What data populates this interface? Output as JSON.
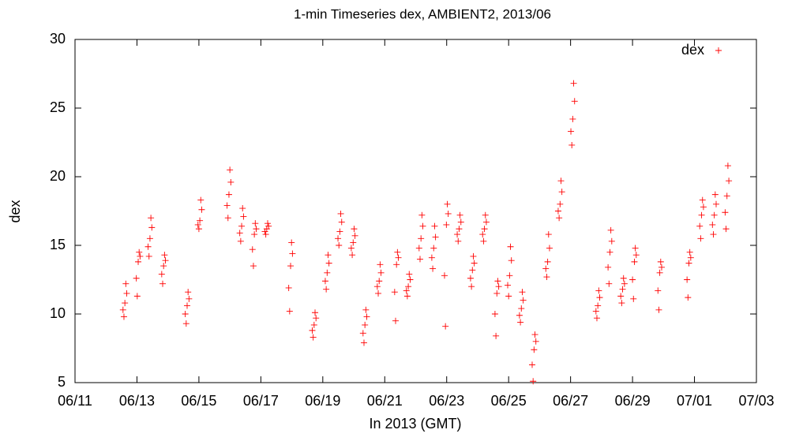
{
  "chart_data": {
    "type": "scatter",
    "title": "1-min Timeseries dex, AMBIENT2, 2013/06",
    "x_label": "In 2013 (GMT)",
    "y_label": "dex",
    "xlim": [
      11,
      33
    ],
    "xticks": [
      {
        "value": 11,
        "label": "06/11"
      },
      {
        "value": 13,
        "label": "06/13"
      },
      {
        "value": 15,
        "label": "06/15"
      },
      {
        "value": 17,
        "label": "06/17"
      },
      {
        "value": 19,
        "label": "06/19"
      },
      {
        "value": 21,
        "label": "06/21"
      },
      {
        "value": 23,
        "label": "06/23"
      },
      {
        "value": 25,
        "label": "06/25"
      },
      {
        "value": 27,
        "label": "06/27"
      },
      {
        "value": 29,
        "label": "06/29"
      },
      {
        "value": 31,
        "label": "07/01"
      },
      {
        "value": 33,
        "label": "07/03"
      }
    ],
    "ylim": [
      5,
      30
    ],
    "yticks": [
      5,
      10,
      15,
      20,
      25,
      30
    ],
    "legend": "top-right",
    "series": [
      {
        "name": "dex",
        "color": "#ff0000",
        "x": [
          12.55,
          12.58,
          12.61,
          12.64,
          12.67,
          12.98,
          13.01,
          13.04,
          13.07,
          13.1,
          13.36,
          13.39,
          13.42,
          13.45,
          13.48,
          13.8,
          13.83,
          13.86,
          13.89,
          13.92,
          14.56,
          14.59,
          14.62,
          14.65,
          14.68,
          14.97,
          15,
          15.03,
          15.06,
          15.09,
          15.91,
          15.94,
          15.97,
          16,
          16.03,
          16.32,
          16.35,
          16.38,
          16.41,
          16.44,
          16.73,
          16.76,
          16.79,
          16.82,
          16.85,
          17.13,
          17.16,
          17.19,
          17.22,
          17.25,
          17.9,
          17.93,
          17.96,
          17.99,
          18.02,
          18.66,
          18.69,
          18.72,
          18.75,
          18.78,
          19.08,
          19.11,
          19.14,
          19.17,
          19.2,
          19.49,
          19.52,
          19.55,
          19.58,
          19.61,
          19.92,
          19.95,
          19.98,
          20.01,
          20.04,
          20.3,
          20.33,
          20.36,
          20.39,
          20.42,
          20.76,
          20.79,
          20.82,
          20.85,
          20.88,
          21.32,
          21.35,
          21.38,
          21.41,
          21.44,
          21.7,
          21.73,
          21.76,
          21.79,
          21.82,
          22.11,
          22.14,
          22.17,
          22.2,
          22.23,
          22.52,
          22.55,
          22.58,
          22.61,
          22.64,
          22.93,
          22.96,
          22.99,
          23.02,
          23.05,
          23.34,
          23.37,
          23.4,
          23.43,
          23.46,
          23.77,
          23.8,
          23.83,
          23.86,
          23.89,
          24.16,
          24.19,
          24.22,
          24.25,
          24.28,
          24.56,
          24.59,
          24.62,
          24.65,
          24.68,
          24.97,
          25,
          25.03,
          25.06,
          25.09,
          25.35,
          25.38,
          25.41,
          25.44,
          25.47,
          25.76,
          25.79,
          25.82,
          25.85,
          25.88,
          26.2,
          26.23,
          26.26,
          26.29,
          26.32,
          26.6,
          26.63,
          26.66,
          26.69,
          26.72,
          27.01,
          27.04,
          27.07,
          27.1,
          27.13,
          27.82,
          27.85,
          27.88,
          27.91,
          27.94,
          28.21,
          28.24,
          28.27,
          28.3,
          28.33,
          28.62,
          28.65,
          28.68,
          28.71,
          28.74,
          29,
          29.03,
          29.06,
          29.09,
          29.12,
          29.82,
          29.85,
          29.88,
          29.91,
          29.94,
          30.76,
          30.79,
          30.82,
          30.85,
          30.88,
          31.17,
          31.2,
          31.23,
          31.26,
          31.29,
          31.58,
          31.61,
          31.64,
          31.67,
          31.7,
          31.99,
          32.02,
          32.05,
          32.08,
          32.11
        ],
        "values": [
          10.3,
          9.8,
          10.8,
          12.2,
          11.5,
          12.6,
          11.3,
          13.8,
          14.5,
          14.2,
          14.9,
          14.2,
          15.5,
          17,
          16.3,
          12.9,
          12.2,
          13.5,
          14.3,
          13.9,
          10,
          9.3,
          10.6,
          11.6,
          11.1,
          16.5,
          16.2,
          16.8,
          18.3,
          17.6,
          17.9,
          17,
          18.7,
          20.5,
          19.6,
          15.9,
          15.3,
          16.4,
          17.7,
          17.1,
          14.7,
          13.5,
          15.8,
          16.6,
          16.2,
          16,
          15.8,
          16.2,
          16.6,
          16.4,
          11.9,
          10.2,
          13.5,
          15.2,
          14.4,
          8.8,
          8.3,
          9.2,
          10.1,
          9.7,
          12.4,
          11.8,
          13,
          14.3,
          13.7,
          15.5,
          15,
          16,
          17.3,
          16.7,
          14.8,
          14.3,
          15.2,
          16.2,
          15.7,
          8.6,
          7.9,
          9.2,
          10.3,
          9.8,
          12,
          11.5,
          12.4,
          13.6,
          13,
          11.6,
          9.5,
          13.6,
          14.5,
          14.1,
          11.7,
          11.3,
          12,
          12.9,
          12.5,
          14.8,
          14,
          15.5,
          17.2,
          16.4,
          14.1,
          13.3,
          14.8,
          16.4,
          15.6,
          12.8,
          9.1,
          16.5,
          18,
          17.3,
          15.8,
          15.3,
          16.2,
          17.2,
          16.7,
          12.6,
          12,
          13.2,
          14.2,
          13.7,
          15.8,
          15.3,
          16.2,
          17.2,
          16.7,
          10,
          8.4,
          11.5,
          12.4,
          12,
          12.1,
          11.3,
          12.8,
          14.9,
          13.9,
          9.9,
          9.4,
          10.4,
          11.6,
          11,
          6.3,
          5.1,
          7.4,
          8.5,
          8,
          13.3,
          12.7,
          13.8,
          15.8,
          14.8,
          17.5,
          17,
          18,
          19.7,
          18.9,
          23.3,
          22.3,
          24.2,
          26.8,
          25.5,
          10.2,
          9.7,
          10.6,
          11.7,
          11.2,
          13.4,
          12.2,
          14.5,
          16.1,
          15.3,
          11.3,
          10.8,
          11.8,
          12.6,
          12.2,
          12.5,
          11.1,
          13.8,
          14.8,
          14.3,
          11.7,
          10.3,
          13,
          13.8,
          13.4,
          12.5,
          11.2,
          13.7,
          14.5,
          14.1,
          16.4,
          15.5,
          17.2,
          18.3,
          17.8,
          16.5,
          15.8,
          17.2,
          18.7,
          18,
          17.4,
          16.2,
          18.6,
          20.8,
          19.7
        ]
      }
    ]
  }
}
